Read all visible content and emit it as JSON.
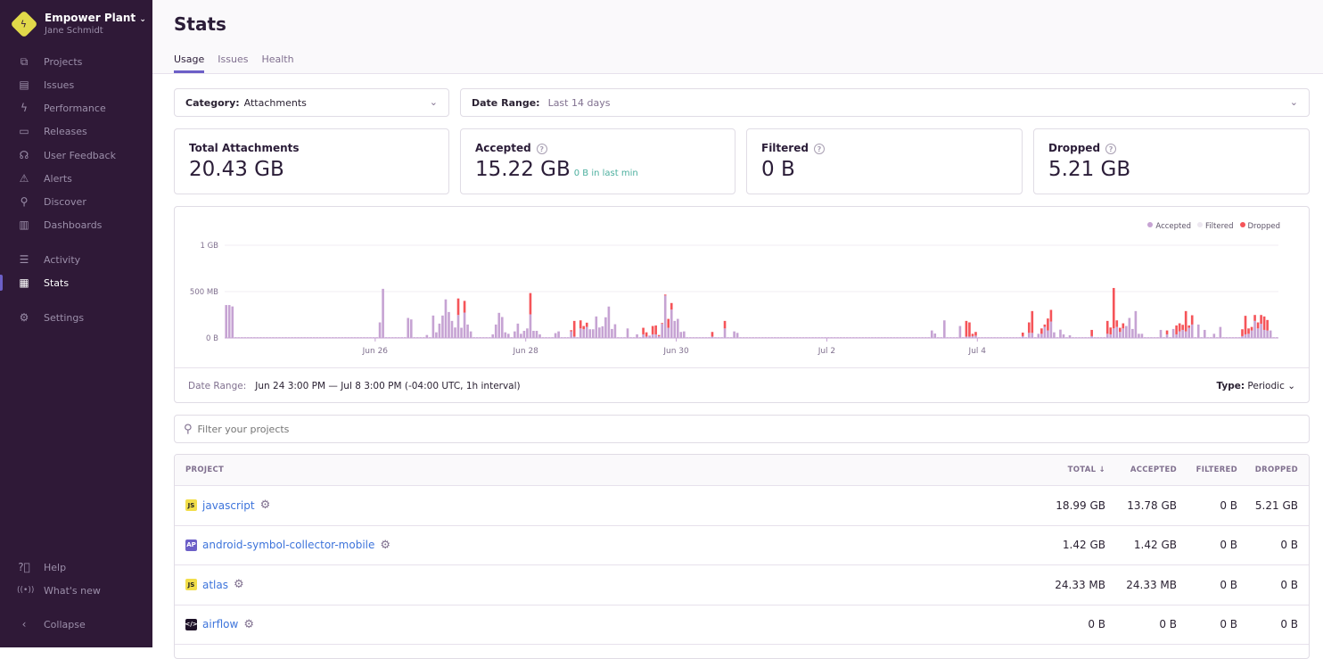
{
  "sidebar": {
    "org_name": "Empower Plant",
    "user_name": "Jane Schmidt",
    "items": [
      {
        "label": "Projects",
        "icon": "projects-icon",
        "glyph": "⧉"
      },
      {
        "label": "Issues",
        "icon": "issues-icon",
        "glyph": "▤"
      },
      {
        "label": "Performance",
        "icon": "performance-icon",
        "glyph": "ϟ"
      },
      {
        "label": "Releases",
        "icon": "releases-icon",
        "glyph": "▭"
      },
      {
        "label": "User Feedback",
        "icon": "user-feedback-icon",
        "glyph": "☊"
      },
      {
        "label": "Alerts",
        "icon": "alerts-icon",
        "glyph": "⚠"
      },
      {
        "label": "Discover",
        "icon": "discover-icon",
        "glyph": "⚲"
      },
      {
        "label": "Dashboards",
        "icon": "dashboards-icon",
        "glyph": "▥"
      },
      {
        "label": "Activity",
        "icon": "activity-icon",
        "glyph": "☰"
      },
      {
        "label": "Stats",
        "icon": "stats-icon",
        "glyph": "▦"
      },
      {
        "label": "Settings",
        "icon": "settings-icon",
        "glyph": "⚙"
      }
    ],
    "help": "Help",
    "whats_new": "What's new",
    "collapse": "Collapse"
  },
  "header": {
    "title": "Stats",
    "tabs": [
      "Usage",
      "Issues",
      "Health"
    ]
  },
  "filters": {
    "category_label": "Category:",
    "category_value": "Attachments",
    "date_label": "Date Range:",
    "date_value": "Last 14 days"
  },
  "cards": [
    {
      "label": "Total Attachments",
      "value": "20.43 GB"
    },
    {
      "label": "Accepted",
      "value": "15.22 GB",
      "sub": "0 B in last min"
    },
    {
      "label": "Filtered",
      "value": "0 B"
    },
    {
      "label": "Dropped",
      "value": "5.21 GB"
    }
  ],
  "chart_footer": {
    "date_label": "Date Range:",
    "date_value": "Jun 24 3:00 PM — Jul 8 3:00 PM (-04:00 UTC, 1h interval)",
    "type_label": "Type:",
    "type_value": "Periodic"
  },
  "search": {
    "placeholder": "Filter your projects"
  },
  "table": {
    "headers": [
      "PROJECT",
      "TOTAL ↓",
      "ACCEPTED",
      "FILTERED",
      "DROPPED"
    ],
    "rows": [
      {
        "project": "javascript",
        "badge": "JS",
        "badge_bg": "#f2de4a",
        "badge_fg": "#222",
        "total": "18.99 GB",
        "accepted": "13.78 GB",
        "filtered": "0 B",
        "dropped": "5.21 GB"
      },
      {
        "project": "android-symbol-collector-mobile",
        "badge": "AP",
        "badge_bg": "#6c5fc7",
        "badge_fg": "#fff",
        "total": "1.42 GB",
        "accepted": "1.42 GB",
        "filtered": "0 B",
        "dropped": "0 B"
      },
      {
        "project": "atlas",
        "badge": "JS",
        "badge_bg": "#f2de4a",
        "badge_fg": "#222",
        "total": "24.33 MB",
        "accepted": "24.33 MB",
        "filtered": "0 B",
        "dropped": "0 B"
      },
      {
        "project": "airflow",
        "badge": "</>",
        "badge_bg": "#1d1127",
        "badge_fg": "#fff",
        "total": "0 B",
        "accepted": "0 B",
        "filtered": "0 B",
        "dropped": "0 B"
      }
    ]
  },
  "chart_data": {
    "type": "bar",
    "stacked": true,
    "interval": "1h",
    "x_start": "Jun 24 00:00",
    "x_end": "Jul 8 00:00",
    "x_ticks": [
      "Jun 26",
      "Jun 28",
      "Jun 30",
      "Jul 2",
      "Jul 4"
    ],
    "y_ticks": [
      "0 B",
      "500 MB",
      "1 GB"
    ],
    "y_unit": "MB",
    "ylim": [
      0,
      1000
    ],
    "grid": true,
    "legend_position": "top-right",
    "series": [
      {
        "name": "Accepted",
        "color": "#c6a3d3"
      },
      {
        "name": "Filtered",
        "color": "#ece7f0"
      },
      {
        "name": "Dropped",
        "color": "#f55459"
      }
    ],
    "baseline_accepted_mb": 8,
    "points_columns": [
      "time",
      "accepted_mb",
      "dropped_mb"
    ],
    "points": [
      [
        "Jun 24 00:00",
        355,
        0
      ],
      [
        "Jun 24 01:00",
        355,
        0
      ],
      [
        "Jun 24 02:00",
        340,
        0
      ],
      [
        "Jun 26 01:00",
        168,
        0
      ],
      [
        "Jun 26 02:00",
        530,
        0
      ],
      [
        "Jun 26 10:00",
        216,
        0
      ],
      [
        "Jun 26 11:00",
        200,
        0
      ],
      [
        "Jun 26 16:00",
        32,
        0
      ],
      [
        "Jun 26 18:00",
        242,
        0
      ],
      [
        "Jun 26 19:00",
        61,
        0
      ],
      [
        "Jun 26 20:00",
        155,
        0
      ],
      [
        "Jun 26 21:00",
        242,
        0
      ],
      [
        "Jun 26 22:00",
        416,
        0
      ],
      [
        "Jun 26 23:00",
        280,
        0
      ],
      [
        "Jun 27 00:00",
        184,
        0
      ],
      [
        "Jun 27 01:00",
        113,
        0
      ],
      [
        "Jun 27 02:00",
        248,
        178
      ],
      [
        "Jun 27 03:00",
        110,
        0
      ],
      [
        "Jun 27 04:00",
        274,
        126
      ],
      [
        "Jun 27 05:00",
        145,
        0
      ],
      [
        "Jun 27 06:00",
        71,
        0
      ],
      [
        "Jun 27 13:00",
        39,
        0
      ],
      [
        "Jun 27 14:00",
        145,
        0
      ],
      [
        "Jun 27 15:00",
        271,
        0
      ],
      [
        "Jun 27 16:00",
        226,
        0
      ],
      [
        "Jun 27 17:00",
        61,
        0
      ],
      [
        "Jun 27 18:00",
        45,
        0
      ],
      [
        "Jun 27 20:00",
        71,
        0
      ],
      [
        "Jun 27 21:00",
        155,
        0
      ],
      [
        "Jun 27 22:00",
        45,
        0
      ],
      [
        "Jun 27 23:00",
        77,
        0
      ],
      [
        "Jun 28 00:00",
        103,
        0
      ],
      [
        "Jun 28 01:00",
        255,
        229
      ],
      [
        "Jun 28 02:00",
        77,
        0
      ],
      [
        "Jun 28 03:00",
        77,
        0
      ],
      [
        "Jun 28 04:00",
        39,
        0
      ],
      [
        "Jun 28 09:00",
        52,
        0
      ],
      [
        "Jun 28 10:00",
        71,
        0
      ],
      [
        "Jun 28 14:00",
        71,
        13
      ],
      [
        "Jun 28 15:00",
        15,
        169
      ],
      [
        "Jun 28 17:00",
        103,
        87
      ],
      [
        "Jun 28 18:00",
        94,
        35
      ],
      [
        "Jun 28 19:00",
        119,
        46
      ],
      [
        "Jun 28 20:00",
        94,
        0
      ],
      [
        "Jun 28 21:00",
        94,
        0
      ],
      [
        "Jun 28 22:00",
        232,
        0
      ],
      [
        "Jun 28 23:00",
        113,
        0
      ],
      [
        "Jun 29 00:00",
        126,
        0
      ],
      [
        "Jun 29 01:00",
        223,
        0
      ],
      [
        "Jun 29 02:00",
        339,
        0
      ],
      [
        "Jun 29 03:00",
        97,
        0
      ],
      [
        "Jun 29 04:00",
        148,
        0
      ],
      [
        "Jun 29 08:00",
        103,
        0
      ],
      [
        "Jun 29 11:00",
        39,
        0
      ],
      [
        "Jun 29 13:00",
        39,
        71
      ],
      [
        "Jun 29 14:00",
        15,
        46
      ],
      [
        "Jun 29 15:00",
        26,
        0
      ],
      [
        "Jun 29 16:00",
        39,
        90
      ],
      [
        "Jun 29 17:00",
        39,
        96
      ],
      [
        "Jun 29 18:00",
        20,
        12
      ],
      [
        "Jun 29 19:00",
        152,
        9
      ],
      [
        "Jun 29 20:00",
        458,
        10
      ],
      [
        "Jun 29 21:00",
        110,
        96
      ],
      [
        "Jun 29 22:00",
        306,
        71
      ],
      [
        "Jun 29 23:00",
        184,
        0
      ],
      [
        "Jun 30 00:00",
        206,
        0
      ],
      [
        "Jun 30 01:00",
        65,
        0
      ],
      [
        "Jun 30 02:00",
        71,
        0
      ],
      [
        "Jun 30 11:00",
        15,
        50
      ],
      [
        "Jun 30 15:00",
        103,
        81
      ],
      [
        "Jun 30 18:00",
        71,
        0
      ],
      [
        "Jun 30 19:00",
        55,
        0
      ],
      [
        "Jul 3 09:00",
        81,
        0
      ],
      [
        "Jul 3 10:00",
        48,
        0
      ],
      [
        "Jul 3 13:00",
        190,
        0
      ],
      [
        "Jul 3 18:00",
        129,
        0
      ],
      [
        "Jul 3 20:00",
        15,
        169
      ],
      [
        "Jul 3 21:00",
        15,
        153
      ],
      [
        "Jul 3 22:00",
        20,
        25
      ],
      [
        "Jul 3 23:00",
        25,
        40
      ],
      [
        "Jul 4 14:00",
        20,
        38
      ],
      [
        "Jul 4 16:00",
        55,
        113
      ],
      [
        "Jul 4 17:00",
        55,
        235
      ],
      [
        "Jul 4 19:00",
        45,
        0
      ],
      [
        "Jul 4 20:00",
        45,
        58
      ],
      [
        "Jul 4 21:00",
        119,
        26
      ],
      [
        "Jul 4 22:00",
        81,
        129
      ],
      [
        "Jul 4 23:00",
        177,
        126
      ],
      [
        "Jul 5 00:00",
        61,
        0
      ],
      [
        "Jul 5 02:00",
        90,
        0
      ],
      [
        "Jul 5 03:00",
        39,
        0
      ],
      [
        "Jul 5 05:00",
        29,
        0
      ],
      [
        "Jul 5 12:00",
        20,
        67
      ],
      [
        "Jul 5 17:00",
        45,
        139
      ],
      [
        "Jul 5 18:00",
        39,
        74
      ],
      [
        "Jul 5 19:00",
        103,
        436
      ],
      [
        "Jul 5 20:00",
        119,
        71
      ],
      [
        "Jul 5 21:00",
        65,
        45
      ],
      [
        "Jul 5 22:00",
        103,
        55
      ],
      [
        "Jul 5 23:00",
        129,
        0
      ],
      [
        "Jul 6 00:00",
        216,
        0
      ],
      [
        "Jul 6 01:00",
        97,
        0
      ],
      [
        "Jul 6 02:00",
        290,
        0
      ],
      [
        "Jul 6 03:00",
        45,
        0
      ],
      [
        "Jul 6 04:00",
        45,
        0
      ],
      [
        "Jul 6 10:00",
        87,
        0
      ],
      [
        "Jul 6 12:00",
        39,
        42
      ],
      [
        "Jul 6 14:00",
        97,
        0
      ],
      [
        "Jul 6 15:00",
        39,
        96
      ],
      [
        "Jul 6 16:00",
        71,
        87
      ],
      [
        "Jul 6 17:00",
        87,
        55
      ],
      [
        "Jul 6 18:00",
        71,
        219
      ],
      [
        "Jul 6 19:00",
        110,
        25
      ],
      [
        "Jul 6 20:00",
        145,
        100
      ],
      [
        "Jul 6 22:00",
        145,
        0
      ],
      [
        "Jul 7 00:00",
        87,
        0
      ],
      [
        "Jul 7 03:00",
        45,
        0
      ],
      [
        "Jul 7 05:00",
        119,
        0
      ],
      [
        "Jul 7 12:00",
        20,
        74
      ],
      [
        "Jul 7 13:00",
        39,
        200
      ],
      [
        "Jul 7 14:00",
        45,
        58
      ],
      [
        "Jul 7 15:00",
        81,
        38
      ],
      [
        "Jul 7 16:00",
        184,
        64
      ],
      [
        "Jul 7 17:00",
        103,
        65
      ],
      [
        "Jul 7 18:00",
        152,
        96
      ],
      [
        "Jul 7 19:00",
        87,
        145
      ],
      [
        "Jul 7 20:00",
        81,
        113
      ],
      [
        "Jul 7 21:00",
        81,
        0
      ]
    ]
  }
}
